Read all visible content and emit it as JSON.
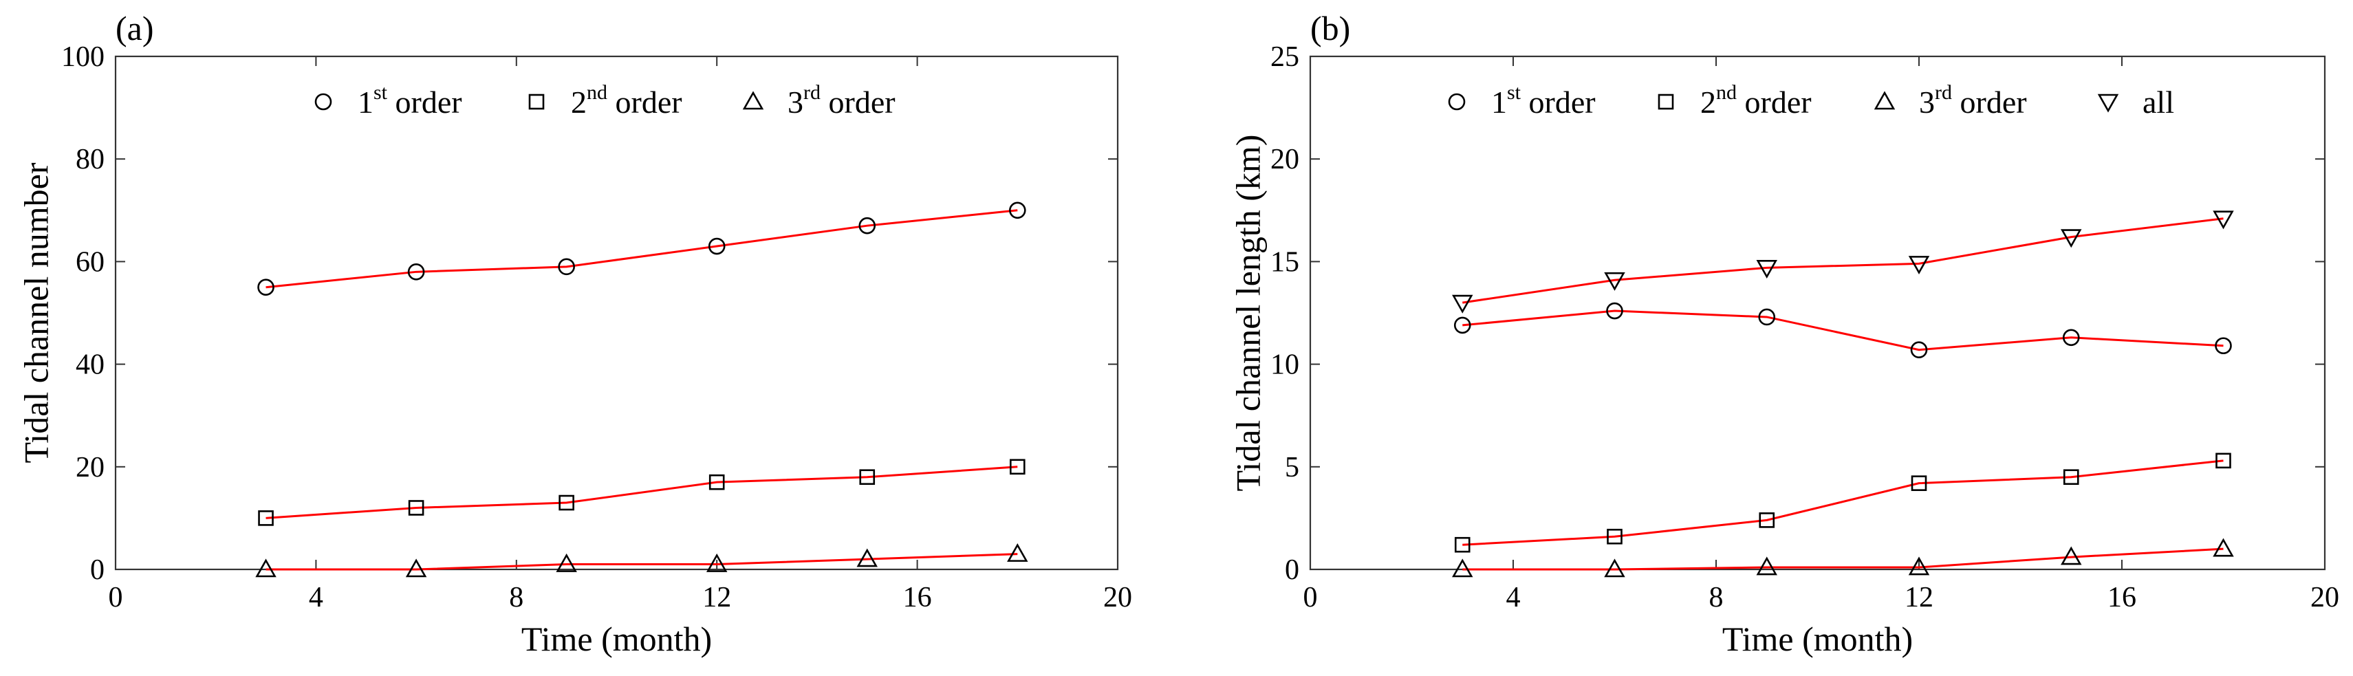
{
  "chart_data": [
    {
      "type": "line",
      "panel_label": "(a)",
      "xlabel": "Time (month)",
      "ylabel": "Tidal channel number",
      "xlim": [
        0,
        20
      ],
      "ylim": [
        0,
        100
      ],
      "xticks": [
        0,
        4,
        8,
        12,
        16,
        20
      ],
      "yticks": [
        0,
        20,
        40,
        60,
        80,
        100
      ],
      "line_color": "#ff0000",
      "legend_position": "top",
      "x": [
        3,
        6,
        9,
        12,
        15,
        18
      ],
      "series": [
        {
          "name": "1st order",
          "sup": "st",
          "base": "1",
          "tail": " order",
          "marker": "circle",
          "values": [
            55,
            58,
            59,
            63,
            67,
            70
          ]
        },
        {
          "name": "2nd order",
          "sup": "nd",
          "base": "2",
          "tail": " order",
          "marker": "square",
          "values": [
            10,
            12,
            13,
            17,
            18,
            20
          ]
        },
        {
          "name": "3rd order",
          "sup": "rd",
          "base": "3",
          "tail": " order",
          "marker": "triangle-up",
          "values": [
            0,
            0,
            1,
            1,
            2,
            3
          ]
        }
      ]
    },
    {
      "type": "line",
      "panel_label": "(b)",
      "xlabel": "Time (month)",
      "ylabel": "Tidal channel length (km)",
      "xlim": [
        0,
        20
      ],
      "ylim": [
        0,
        25
      ],
      "xticks": [
        0,
        4,
        8,
        12,
        16,
        20
      ],
      "yticks": [
        0,
        5,
        10,
        15,
        20,
        25
      ],
      "line_color": "#ff0000",
      "legend_position": "top",
      "x": [
        3,
        6,
        9,
        12,
        15,
        18
      ],
      "series": [
        {
          "name": "1st order",
          "sup": "st",
          "base": "1",
          "tail": " order",
          "marker": "circle",
          "values": [
            11.9,
            12.6,
            12.3,
            10.7,
            11.3,
            10.9
          ]
        },
        {
          "name": "2nd order",
          "sup": "nd",
          "base": "2",
          "tail": " order",
          "marker": "square",
          "values": [
            1.2,
            1.6,
            2.4,
            4.2,
            4.5,
            5.3
          ]
        },
        {
          "name": "3rd order",
          "sup": "rd",
          "base": "3",
          "tail": " order",
          "marker": "triangle-up",
          "values": [
            0.0,
            0.0,
            0.1,
            0.1,
            0.6,
            1.0
          ]
        },
        {
          "name": "all",
          "sup": "",
          "base": "all",
          "tail": "",
          "marker": "triangle-down",
          "values": [
            13.0,
            14.1,
            14.7,
            14.9,
            16.2,
            17.1
          ]
        }
      ]
    }
  ]
}
